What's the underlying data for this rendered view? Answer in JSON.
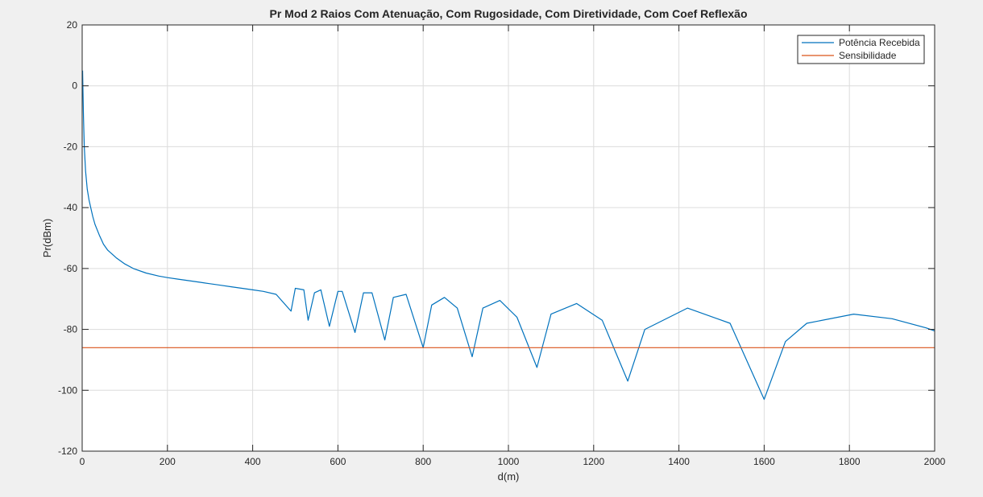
{
  "chart_data": {
    "type": "line",
    "title": "Pr Mod 2 Raios Com Atenuação, Com Rugosidade, Com Diretividade, Com Coef Reflexão",
    "xlabel": "d(m)",
    "ylabel": "Pr(dBm)",
    "xlim": [
      0,
      2000
    ],
    "ylim": [
      -120,
      20
    ],
    "xticks": [
      0,
      200,
      400,
      600,
      800,
      1000,
      1200,
      1400,
      1600,
      1800,
      2000
    ],
    "yticks": [
      -120,
      -100,
      -80,
      -60,
      -40,
      -20,
      0,
      20
    ],
    "grid": true,
    "legend_position": "top-right",
    "series": [
      {
        "name": "Potência Recebida",
        "color": "#0072bd",
        "x": [
          1,
          3,
          5,
          8,
          12,
          16,
          20,
          25,
          30,
          40,
          50,
          60,
          80,
          100,
          120,
          150,
          180,
          200,
          225,
          250,
          275,
          300,
          325,
          350,
          375,
          400,
          425,
          455,
          490,
          500,
          520,
          530,
          545,
          560,
          580,
          600,
          610,
          640,
          660,
          680,
          710,
          730,
          760,
          800,
          820,
          850,
          880,
          915,
          940,
          980,
          1020,
          1067,
          1100,
          1160,
          1220,
          1280,
          1320,
          1420,
          1520,
          1600,
          1650,
          1700,
          1810,
          1900,
          1980,
          2000
        ],
        "y": [
          5,
          -10,
          -20,
          -28,
          -34,
          -37.5,
          -40,
          -43,
          -45.5,
          -49,
          -52,
          -54,
          -56.5,
          -58.5,
          -60,
          -61.5,
          -62.5,
          -63,
          -63.5,
          -64,
          -64.5,
          -65,
          -65.5,
          -66,
          -66.5,
          -67,
          -67.5,
          -68.5,
          -74,
          -66.5,
          -67,
          -77,
          -68,
          -67,
          -79,
          -67.5,
          -67.5,
          -81,
          -68,
          -68,
          -83.5,
          -69.5,
          -68.5,
          -86,
          -72,
          -69.5,
          -73,
          -89,
          -73,
          -70.5,
          -76,
          -92.5,
          -75,
          -71.5,
          -77,
          -97,
          -80,
          -73,
          -78,
          -103,
          -84,
          -78,
          -75,
          -76.5,
          -79.5,
          -80.5
        ]
      },
      {
        "name": "Sensibilidade",
        "color": "#d95319",
        "x": [
          0,
          2000
        ],
        "y": [
          -86,
          -86
        ]
      }
    ]
  }
}
